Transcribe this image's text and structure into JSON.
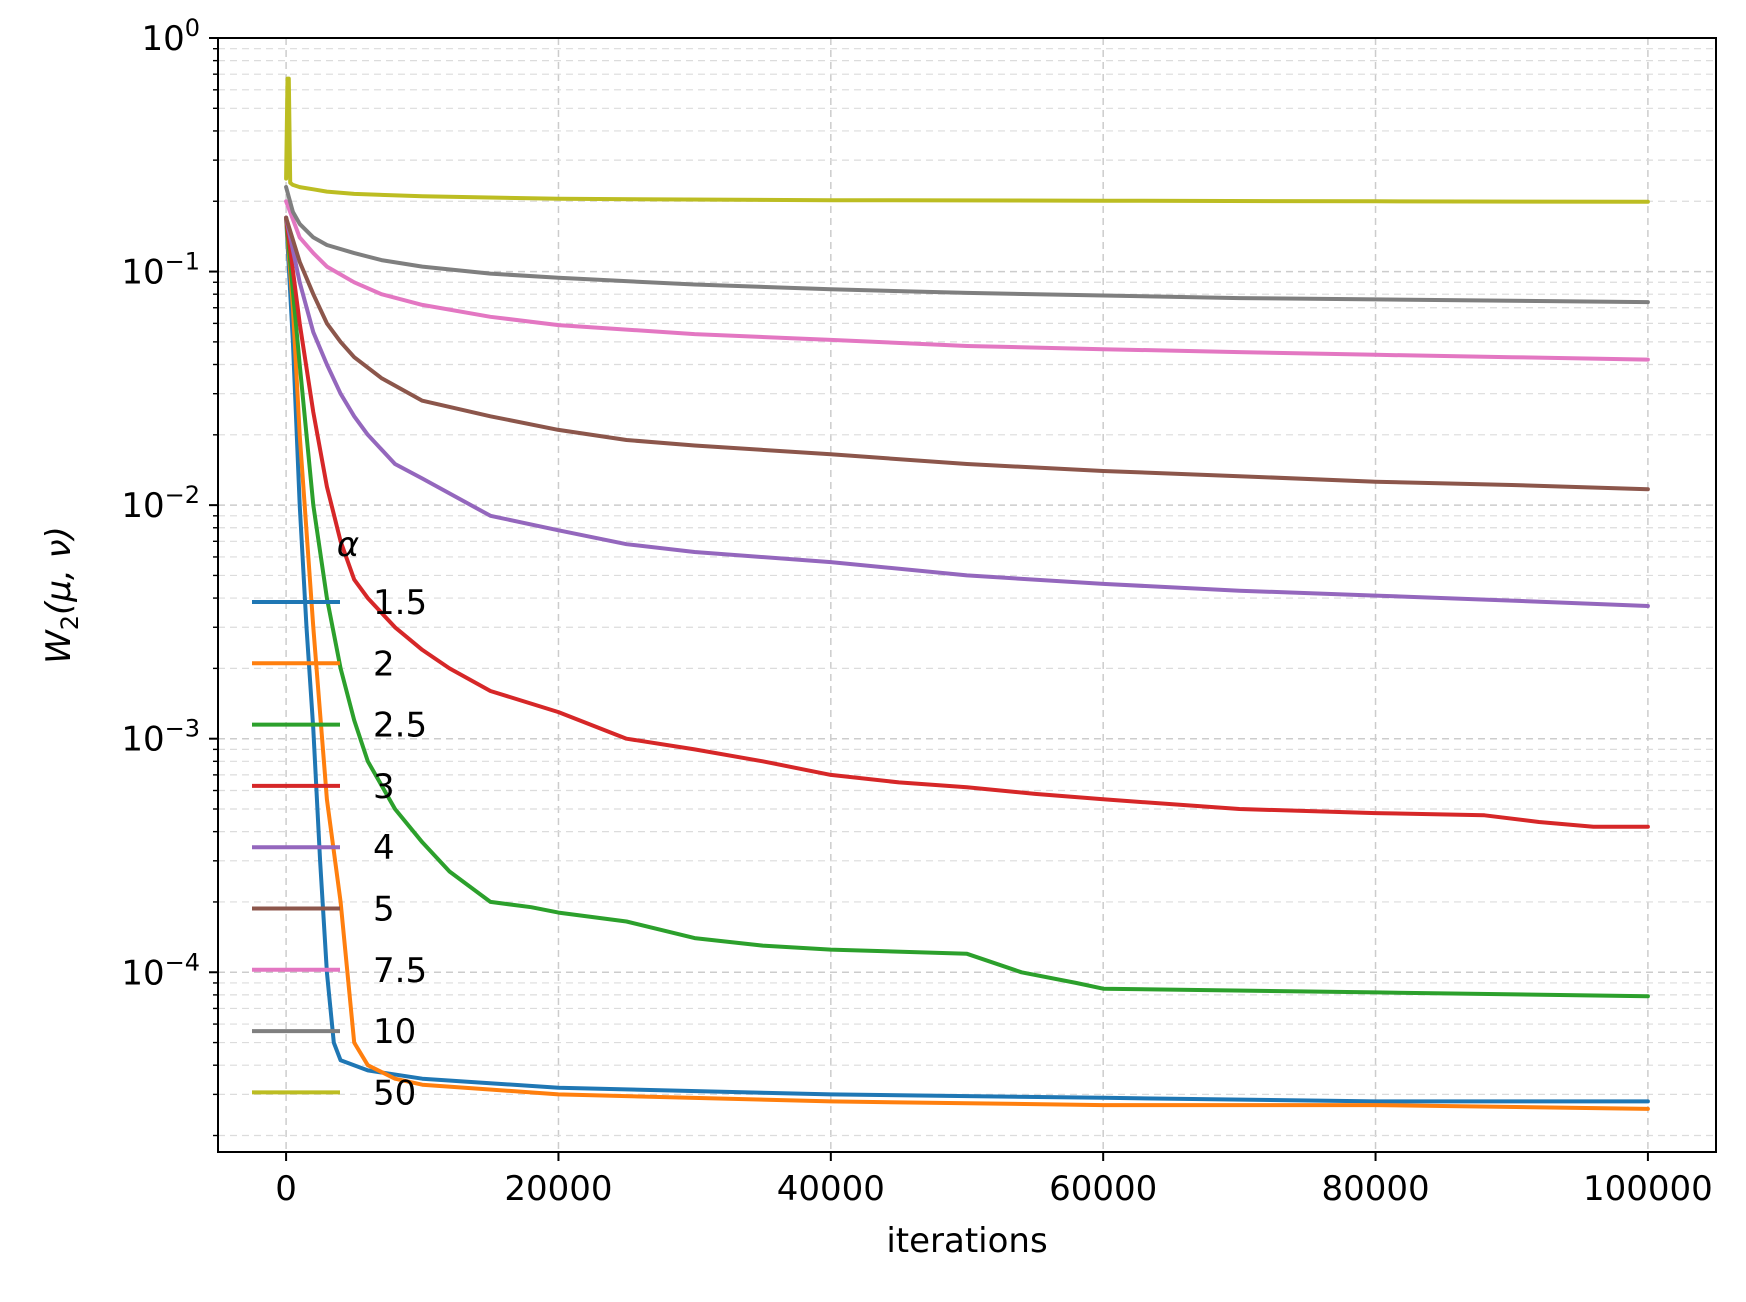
{
  "chart_data": {
    "type": "line",
    "xlabel": "iterations",
    "ylabel": "W₂(μ, ν)",
    "xscale": "linear",
    "yscale": "log",
    "xlim": [
      -5000,
      105000
    ],
    "ylim": [
      1.7e-05,
      1.0
    ],
    "x_ticks": [
      0,
      20000,
      40000,
      60000,
      80000,
      100000
    ],
    "x_tick_labels": [
      "0",
      "20000",
      "40000",
      "60000",
      "80000",
      "100000"
    ],
    "y_ticks": [
      0.0001,
      0.001,
      0.01,
      0.1,
      1
    ],
    "y_tick_labels": [
      {
        "base": "10",
        "exp": "−4"
      },
      {
        "base": "10",
        "exp": "−3"
      },
      {
        "base": "10",
        "exp": "−2"
      },
      {
        "base": "10",
        "exp": "−1"
      },
      {
        "base": "10",
        "exp": "0"
      }
    ],
    "grid": true,
    "legend": {
      "title": "α",
      "placement": "center-left"
    },
    "series": [
      {
        "name": "1.5",
        "color": "#1f77b4",
        "x": [
          0,
          500,
          1000,
          1500,
          2000,
          2500,
          3000,
          3500,
          4000,
          6000,
          10000,
          20000,
          40000,
          60000,
          80000,
          100000
        ],
        "y": [
          0.17,
          0.05,
          0.01,
          0.003,
          0.0011,
          0.0003,
          0.0001,
          5e-05,
          4.2e-05,
          3.8e-05,
          3.5e-05,
          3.2e-05,
          3e-05,
          2.9e-05,
          2.8e-05,
          2.8e-05
        ]
      },
      {
        "name": "2",
        "color": "#ff7f0e",
        "x": [
          0,
          500,
          1000,
          2000,
          3000,
          4000,
          5000,
          6000,
          8000,
          10000,
          20000,
          40000,
          60000,
          80000,
          100000
        ],
        "y": [
          0.17,
          0.07,
          0.02,
          0.003,
          0.00055,
          0.0002,
          5e-05,
          4e-05,
          3.5e-05,
          3.3e-05,
          3e-05,
          2.8e-05,
          2.7e-05,
          2.7e-05,
          2.6e-05
        ]
      },
      {
        "name": "2.5",
        "color": "#2ca02c",
        "x": [
          0,
          1000,
          2000,
          3000,
          4000,
          5000,
          6000,
          8000,
          10000,
          12000,
          15000,
          18000,
          20000,
          25000,
          30000,
          35000,
          40000,
          50000,
          54000,
          58000,
          60000,
          80000,
          100000
        ],
        "y": [
          0.17,
          0.04,
          0.01,
          0.004,
          0.002,
          0.0012,
          0.0008,
          0.0005,
          0.00036,
          0.00027,
          0.0002,
          0.00019,
          0.00018,
          0.000165,
          0.00014,
          0.00013,
          0.000125,
          0.00012,
          0.0001,
          9e-05,
          8.5e-05,
          8.2e-05,
          7.9e-05
        ]
      },
      {
        "name": "3",
        "color": "#d62728",
        "x": [
          0,
          1000,
          2000,
          3000,
          4000,
          5000,
          6000,
          8000,
          10000,
          12000,
          15000,
          20000,
          25000,
          30000,
          35000,
          40000,
          45000,
          50000,
          55000,
          60000,
          70000,
          80000,
          88000,
          92000,
          96000,
          100000
        ],
        "y": [
          0.17,
          0.06,
          0.025,
          0.012,
          0.007,
          0.0048,
          0.004,
          0.003,
          0.0024,
          0.002,
          0.0016,
          0.0013,
          0.001,
          0.0009,
          0.0008,
          0.0007,
          0.00065,
          0.00062,
          0.00058,
          0.00055,
          0.0005,
          0.00048,
          0.00047,
          0.00044,
          0.00042,
          0.00042
        ]
      },
      {
        "name": "4",
        "color": "#9467bd",
        "x": [
          0,
          1000,
          2000,
          3000,
          4000,
          5000,
          6000,
          8000,
          10000,
          15000,
          20000,
          25000,
          30000,
          40000,
          50000,
          60000,
          70000,
          80000,
          90000,
          100000
        ],
        "y": [
          0.17,
          0.09,
          0.055,
          0.04,
          0.03,
          0.024,
          0.02,
          0.015,
          0.013,
          0.009,
          0.0078,
          0.0068,
          0.0063,
          0.0057,
          0.005,
          0.0046,
          0.0043,
          0.0041,
          0.0039,
          0.0037
        ]
      },
      {
        "name": "5",
        "color": "#8c564b",
        "x": [
          0,
          1000,
          2000,
          3000,
          4000,
          5000,
          7000,
          10000,
          15000,
          20000,
          25000,
          30000,
          40000,
          50000,
          60000,
          70000,
          80000,
          90000,
          100000
        ],
        "y": [
          0.17,
          0.11,
          0.08,
          0.06,
          0.05,
          0.043,
          0.035,
          0.028,
          0.024,
          0.021,
          0.019,
          0.018,
          0.0165,
          0.015,
          0.014,
          0.0133,
          0.0126,
          0.0122,
          0.0117
        ]
      },
      {
        "name": "7.5",
        "color": "#e377c2",
        "x": [
          0,
          1000,
          2000,
          3000,
          5000,
          7000,
          10000,
          15000,
          20000,
          30000,
          40000,
          50000,
          60000,
          70000,
          80000,
          90000,
          100000
        ],
        "y": [
          0.2,
          0.14,
          0.12,
          0.105,
          0.09,
          0.08,
          0.072,
          0.064,
          0.059,
          0.054,
          0.051,
          0.048,
          0.0465,
          0.0452,
          0.044,
          0.043,
          0.042
        ]
      },
      {
        "name": "10",
        "color": "#7f7f7f",
        "x": [
          0,
          500,
          1000,
          2000,
          3000,
          5000,
          7000,
          10000,
          15000,
          20000,
          30000,
          40000,
          50000,
          60000,
          70000,
          80000,
          90000,
          100000
        ],
        "y": [
          0.23,
          0.18,
          0.16,
          0.14,
          0.13,
          0.12,
          0.112,
          0.105,
          0.098,
          0.094,
          0.088,
          0.084,
          0.081,
          0.079,
          0.077,
          0.076,
          0.075,
          0.074
        ]
      },
      {
        "name": "50",
        "color": "#bcbd22",
        "x": [
          0,
          100,
          200,
          300,
          500,
          1000,
          2000,
          3000,
          5000,
          10000,
          20000,
          40000,
          60000,
          80000,
          100000
        ],
        "y": [
          0.25,
          0.67,
          0.67,
          0.24,
          0.235,
          0.23,
          0.225,
          0.22,
          0.215,
          0.21,
          0.205,
          0.202,
          0.201,
          0.2,
          0.199
        ]
      }
    ]
  }
}
